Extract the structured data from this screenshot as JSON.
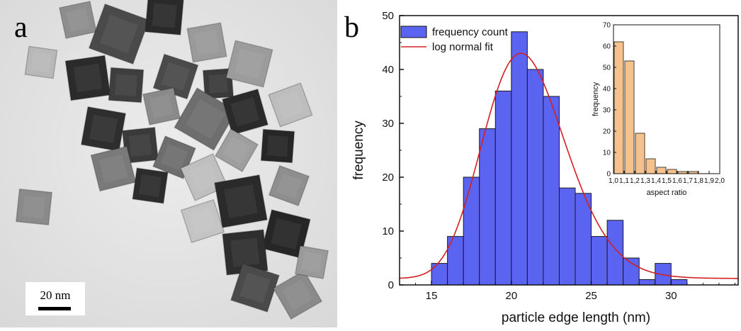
{
  "panels": {
    "a": {
      "letter": "a",
      "scale_bar_label": "20 nm"
    },
    "b": {
      "letter": "b"
    }
  },
  "chart_data": [
    {
      "type": "bar",
      "title": "",
      "xlabel": "particle edge length (nm)",
      "ylabel": "frequency",
      "xlim": [
        13,
        34.2
      ],
      "ylim": [
        0,
        50
      ],
      "xticks": [
        15,
        20,
        25,
        30
      ],
      "yticks": [
        0,
        10,
        20,
        30,
        40,
        50
      ],
      "bin_width": 1,
      "bin_centers": [
        15.5,
        16.5,
        17.5,
        18.5,
        19.5,
        20.5,
        21.5,
        22.5,
        23.5,
        24.5,
        25.5,
        26.5,
        27.5,
        28.5,
        29.5,
        30.5
      ],
      "series": [
        {
          "name": "frequency count",
          "values": [
            4,
            9,
            20,
            29,
            36,
            47,
            40,
            35,
            18,
            17,
            9,
            12,
            5,
            1,
            4,
            1
          ],
          "color": "#5b64f0"
        },
        {
          "name": "log normal fit",
          "type": "line",
          "color": "#d42020",
          "peak_x": 20.6,
          "peak_y": 43,
          "baseline": 1.2
        }
      ],
      "legend": {
        "position": "top-left",
        "entries": [
          "frequency count",
          "log normal fit"
        ]
      }
    },
    {
      "type": "bar",
      "title": "",
      "xlabel": "aspect ratio",
      "ylabel": "frequency",
      "xlim": [
        1.0,
        2.0
      ],
      "ylim": [
        0,
        70
      ],
      "xtick_labels": [
        "1,0",
        "1,1",
        "1,2",
        "1,3",
        "1,4",
        "1,5",
        "1,6",
        "1,7",
        "1,8",
        "1,9",
        "2,0"
      ],
      "yticks": [
        0,
        10,
        20,
        30,
        40,
        50,
        60,
        70
      ],
      "bin_width": 0.1,
      "bin_centers": [
        1.05,
        1.15,
        1.25,
        1.35,
        1.45,
        1.55,
        1.65,
        1.75
      ],
      "values": [
        62,
        53,
        19,
        7,
        3,
        2,
        1,
        1
      ],
      "color": "#f5c18c"
    }
  ]
}
